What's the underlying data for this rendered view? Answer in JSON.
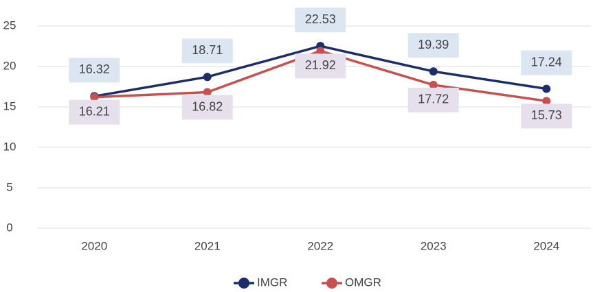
{
  "chart_data": {
    "type": "line",
    "categories": [
      "2020",
      "2021",
      "2022",
      "2023",
      "2024"
    ],
    "series": [
      {
        "name": "IMGR",
        "color": "#1b2d6b",
        "values": [
          16.32,
          18.71,
          22.53,
          19.39,
          17.24
        ]
      },
      {
        "name": "OMGR",
        "color": "#c9504f",
        "values": [
          16.21,
          16.82,
          21.92,
          17.72,
          15.73
        ]
      }
    ],
    "ylim": [
      0,
      25
    ],
    "yticks": [
      0,
      5,
      10,
      15,
      20,
      25
    ],
    "grid": true
  }
}
